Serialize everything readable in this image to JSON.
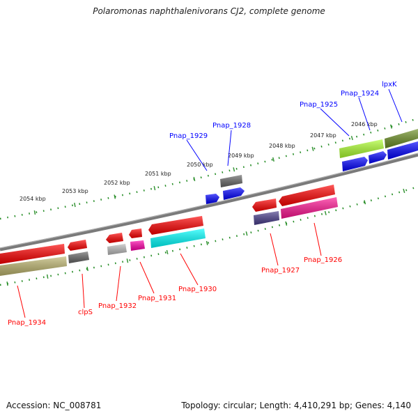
{
  "title": "Polaromonas naphthalenivorans CJ2, complete genome",
  "footer": {
    "accession": "Accession: NC_008781",
    "summary": "Topology: circular; Length: 4,410,291 bp; Genes: 4,140"
  },
  "scale_labels": [
    "2054 kbp",
    "2053 kbp",
    "2052 kbp",
    "2051 kbp",
    "2050 kbp",
    "2049 kbp",
    "2048 kbp",
    "2047 kbp",
    "2046 kbp"
  ],
  "forward_genes": [
    "Pnap_1929",
    "Pnap_1928",
    "Pnap_1925",
    "Pnap_1924",
    "lpxK"
  ],
  "reverse_genes": [
    "Pnap_1934",
    "clpS",
    "Pnap_1932",
    "Pnap_1931",
    "Pnap_1930",
    "Pnap_1927",
    "Pnap_1926"
  ],
  "colors": {
    "forward_label": "#0000ff",
    "reverse_label": "#ff0000",
    "backbone": "#808080",
    "ticks": "#228b22"
  }
}
